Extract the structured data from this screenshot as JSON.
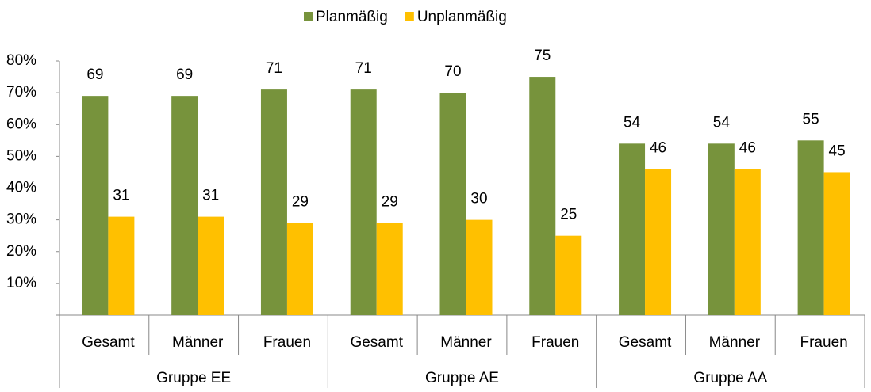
{
  "chart_data": {
    "type": "bar",
    "categories": [
      "Gesamt",
      "Männer",
      "Frauen",
      "Gesamt",
      "Männer",
      "Frauen",
      "Gesamt",
      "Männer",
      "Frauen"
    ],
    "groups": [
      "Gruppe EE",
      "Gruppe AE",
      "Gruppe AA"
    ],
    "series": [
      {
        "name": "Planmäßig",
        "color": "#77933c",
        "values": [
          69,
          69,
          71,
          71,
          70,
          75,
          54,
          54,
          55
        ]
      },
      {
        "name": "Unplanmäßig",
        "color": "#ffc000",
        "values": [
          31,
          31,
          29,
          29,
          30,
          25,
          46,
          46,
          45
        ]
      }
    ],
    "ylim": [
      0,
      80
    ],
    "yticks": [
      {
        "value": 10,
        "label": "10%"
      },
      {
        "value": 20,
        "label": "20%"
      },
      {
        "value": 30,
        "label": "30%"
      },
      {
        "value": 40,
        "label": "40%"
      },
      {
        "value": 50,
        "label": "50%"
      },
      {
        "value": 60,
        "label": "60%"
      },
      {
        "value": 70,
        "label": "70%"
      },
      {
        "value": 80,
        "label": "80%"
      }
    ],
    "legend": "top"
  }
}
